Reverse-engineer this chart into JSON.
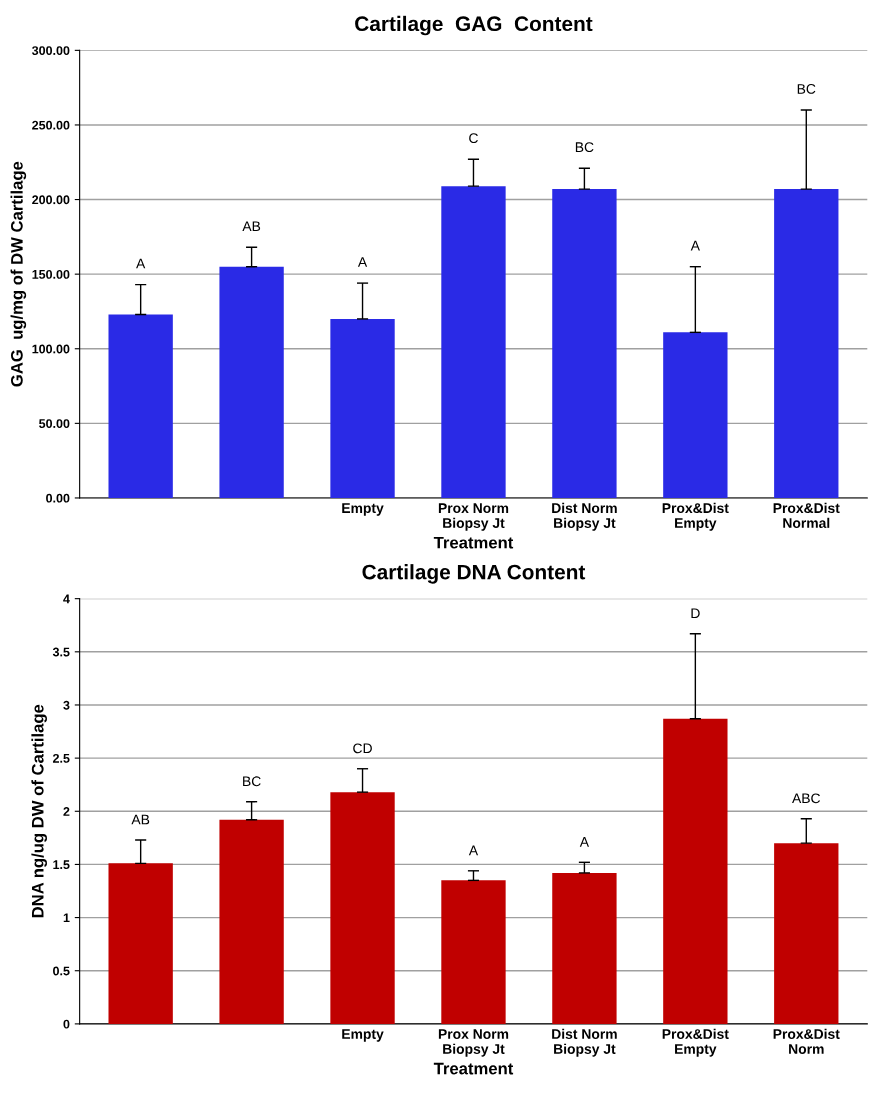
{
  "chart_data": [
    {
      "type": "bar",
      "title": "Cartilage  GAG  Content",
      "xlabel": "Treatment",
      "ylabel": "GAG  ug/mg of DW Cartilage",
      "categories": [
        null,
        null,
        "Empty",
        "Prox Norm\nBiopsy Jt",
        "Dist Norm\nBiopsy Jt",
        "Prox&Dist\nEmpty",
        "Prox&Dist\nNormal"
      ],
      "values": [
        123,
        155,
        120,
        209,
        207,
        111,
        207
      ],
      "errors": [
        [
          123,
          143
        ],
        [
          155,
          168
        ],
        [
          120,
          144
        ],
        [
          209,
          227
        ],
        [
          207,
          221
        ],
        [
          111,
          155
        ],
        [
          207,
          260
        ]
      ],
      "color": "#2a2ae6",
      "annotations": [
        {
          "text": "A",
          "y": 143
        },
        {
          "text": "AB",
          "y": 168
        },
        {
          "text": "A",
          "x": "Empty",
          "y": 144
        },
        {
          "text": "C",
          "x": "Prox Norm\nBiopsy Jt",
          "y": 227
        },
        {
          "text": "BC",
          "x": "Dist Norm\nBiopsy Jt",
          "y": 221
        },
        {
          "text": "A",
          "x": "Prox&Dist\nEmpty",
          "y": 155
        },
        {
          "text": "BC",
          "x": "Prox&Dist\nNormal",
          "y": 260
        }
      ],
      "ylim": [
        0,
        300
      ],
      "yticks": [
        {
          "value": 0,
          "label": "0.00"
        },
        {
          "value": 50,
          "label": "50.00"
        },
        {
          "value": 100,
          "label": "100.00"
        },
        {
          "value": 150,
          "label": "150.00"
        },
        {
          "value": 200,
          "label": "200.00"
        },
        {
          "value": 250,
          "label": "250.00"
        },
        {
          "value": 300,
          "label": "300.00"
        }
      ],
      "grid": "y",
      "legend": false
    },
    {
      "type": "bar",
      "title": "Cartilage DNA Content",
      "xlabel": "Treatment",
      "ylabel": "DNA ng/ug DW of Cartilage",
      "categories": [
        null,
        null,
        "Empty",
        "Prox Norm\nBiopsy Jt",
        "Dist Norm\nBiopsy Jt",
        "Prox&Dist\nEmpty",
        "Prox&Dist\nNorm"
      ],
      "values": [
        1.51,
        1.92,
        2.18,
        1.35,
        1.42,
        2.87,
        1.7
      ],
      "errors": [
        [
          1.51,
          1.73
        ],
        [
          1.92,
          2.09
        ],
        [
          2.18,
          2.4
        ],
        [
          1.35,
          1.44
        ],
        [
          1.42,
          1.52
        ],
        [
          2.87,
          3.67
        ],
        [
          1.7,
          1.93
        ]
      ],
      "color": "#c00000",
      "annotations": [
        {
          "text": "AB",
          "y": 1.73
        },
        {
          "text": "BC",
          "y": 2.09
        },
        {
          "text": "CD",
          "x": "Empty",
          "y": 2.4
        },
        {
          "text": "A",
          "x": "Prox Norm\nBiopsy Jt",
          "y": 1.44
        },
        {
          "text": "A",
          "x": "Dist Norm\nBiopsy Jt",
          "y": 1.52
        },
        {
          "text": "D",
          "x": "Prox&Dist\nEmpty",
          "y": 3.67
        },
        {
          "text": "ABC",
          "x": "Prox&Dist\nNorm",
          "y": 1.93
        }
      ],
      "ylim": [
        0,
        4
      ],
      "yticks": [
        0,
        0.5,
        1,
        1.5,
        2,
        2.5,
        3,
        3.5,
        4
      ],
      "grid": "y",
      "legend": false
    }
  ]
}
